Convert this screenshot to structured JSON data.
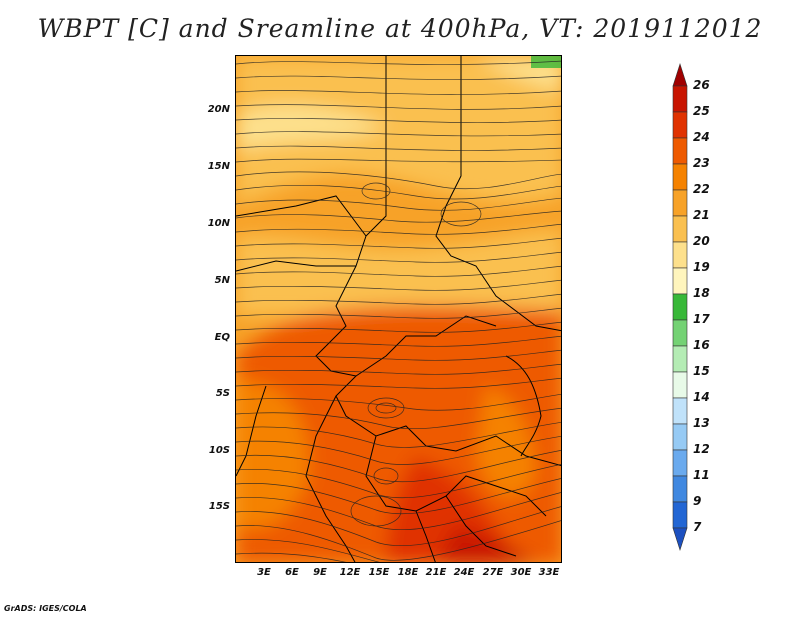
{
  "title": "WBPT [C] and Sreamline at 400hPa, VT: 2019112012",
  "lat_labels": [
    "20N",
    "15N",
    "10N",
    "5N",
    "EQ",
    "5S",
    "10S",
    "15S"
  ],
  "lon_labels": [
    "3E",
    "6E",
    "9E",
    "12E",
    "15E",
    "18E",
    "21E",
    "24E",
    "27E",
    "30E",
    "33E"
  ],
  "colorbar": {
    "labels": [
      "26",
      "25",
      "24",
      "23",
      "22",
      "21",
      "20",
      "19",
      "18",
      "17",
      "16",
      "15",
      "14",
      "13",
      "12",
      "11",
      "9",
      "7"
    ],
    "colors": [
      "#a00000",
      "#c81400",
      "#e03200",
      "#ee5a00",
      "#f58200",
      "#f7a228",
      "#fac050",
      "#fde08c",
      "#fff5bd",
      "#38b838",
      "#74d274",
      "#b4ecb4",
      "#e8fae8",
      "#c0e2fa",
      "#96caf4",
      "#6aaaee",
      "#4088e0",
      "#2266d4",
      "#1c50c0"
    ]
  },
  "footer": "GrADS: IGES/COLA"
}
